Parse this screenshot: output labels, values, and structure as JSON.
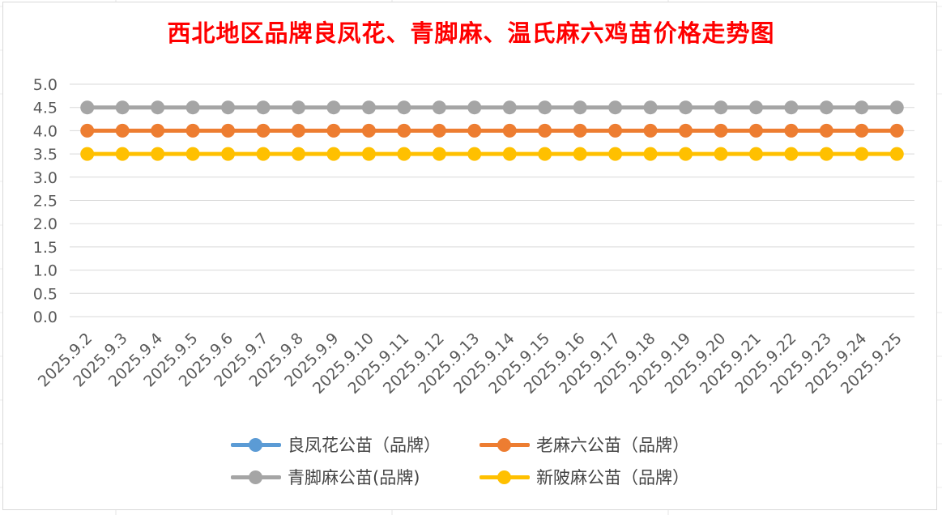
{
  "chart_data": {
    "type": "line",
    "title": "西北地区品牌良凤花、青脚麻、温氏麻六鸡苗价格走势图",
    "categories": [
      "2025.9.2",
      "2025.9.3",
      "2025.9.4",
      "2025.9.5",
      "2025.9.6",
      "2025.9.7",
      "2025.9.8",
      "2025.9.9",
      "2025.9.10",
      "2025.9.11",
      "2025.9.12",
      "2025.9.13",
      "2025.9.14",
      "2025.9.15",
      "2025.9.16",
      "2025.9.17",
      "2025.9.18",
      "2025.9.19",
      "2025.9.20",
      "2025.9.21",
      "2025.9.22",
      "2025.9.23",
      "2025.9.24",
      "2025.9.25"
    ],
    "ylim": [
      0,
      5
    ],
    "yticks": [
      "0.0",
      "0.5",
      "1.0",
      "1.5",
      "2.0",
      "2.5",
      "3.0",
      "3.5",
      "4.0",
      "4.5",
      "5.0"
    ],
    "grid": true,
    "legend_position": "bottom",
    "series": [
      {
        "name": "良凤花公苗（品牌）",
        "color": "#5b9bd5",
        "values": [
          null,
          null,
          null,
          null,
          null,
          null,
          null,
          null,
          null,
          null,
          null,
          null,
          null,
          null,
          null,
          null,
          null,
          null,
          null,
          null,
          null,
          null,
          null,
          null
        ]
      },
      {
        "name": "老麻六公苗（品牌）",
        "color": "#ed7d31",
        "values": [
          4,
          4,
          4,
          4,
          4,
          4,
          4,
          4,
          4,
          4,
          4,
          4,
          4,
          4,
          4,
          4,
          4,
          4,
          4,
          4,
          4,
          4,
          4,
          4
        ]
      },
      {
        "name": "青脚麻公苗(品牌)",
        "color": "#a5a5a5",
        "values": [
          4.5,
          4.5,
          4.5,
          4.5,
          4.5,
          4.5,
          4.5,
          4.5,
          4.5,
          4.5,
          4.5,
          4.5,
          4.5,
          4.5,
          4.5,
          4.5,
          4.5,
          4.5,
          4.5,
          4.5,
          4.5,
          4.5,
          4.5,
          4.5
        ]
      },
      {
        "name": "新陂麻公苗（品牌）",
        "color": "#ffc000",
        "values": [
          3.5,
          3.5,
          3.5,
          3.5,
          3.5,
          3.5,
          3.5,
          3.5,
          3.5,
          3.5,
          3.5,
          3.5,
          3.5,
          3.5,
          3.5,
          3.5,
          3.5,
          3.5,
          3.5,
          3.5,
          3.5,
          3.5,
          3.5,
          3.5
        ]
      }
    ]
  },
  "colors": {
    "title": "#ff0000",
    "gridline": "#d9d9d9",
    "axis_text": "#595959"
  }
}
